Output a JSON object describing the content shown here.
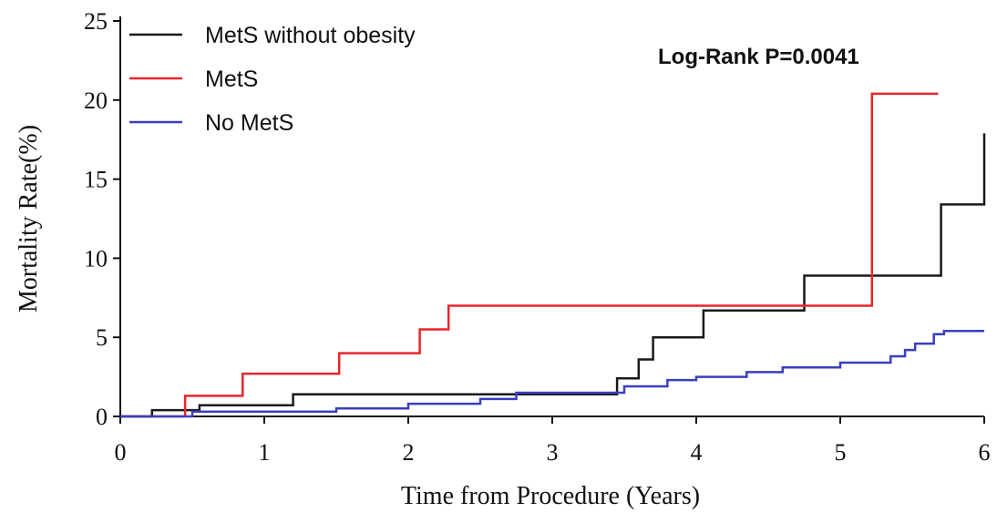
{
  "chart_data": {
    "type": "line",
    "step": true,
    "xlabel": "Time from Procedure (Years)",
    "ylabel": "Mortality Rate(%)",
    "xlim": [
      0,
      6
    ],
    "ylim": [
      0,
      25
    ],
    "x_ticks": [
      "0",
      "1",
      "2",
      "3",
      "4",
      "5",
      "6"
    ],
    "y_ticks": [
      "0",
      "5",
      "10",
      "15",
      "20",
      "25"
    ],
    "grid": false,
    "legend_position": "top-left",
    "annotation": "Log-Rank P=0.0041",
    "series": [
      {
        "name": "MetS without obesity",
        "color": "#1a1a1a",
        "points": [
          [
            0,
            0
          ],
          [
            0.22,
            0
          ],
          [
            0.22,
            0.4
          ],
          [
            0.55,
            0.4
          ],
          [
            0.55,
            0.7
          ],
          [
            1.2,
            0.7
          ],
          [
            1.2,
            1.4
          ],
          [
            3.45,
            1.4
          ],
          [
            3.45,
            2.4
          ],
          [
            3.6,
            2.4
          ],
          [
            3.6,
            3.6
          ],
          [
            3.7,
            3.6
          ],
          [
            3.7,
            5.0
          ],
          [
            4.05,
            5.0
          ],
          [
            4.05,
            6.7
          ],
          [
            4.75,
            6.7
          ],
          [
            4.75,
            8.9
          ],
          [
            5.7,
            8.9
          ],
          [
            5.7,
            13.4
          ],
          [
            6.0,
            13.4
          ],
          [
            6.0,
            17.9
          ]
        ]
      },
      {
        "name": "MetS",
        "color": "#e8262a",
        "points": [
          [
            0,
            0
          ],
          [
            0.45,
            0
          ],
          [
            0.45,
            1.3
          ],
          [
            0.85,
            1.3
          ],
          [
            0.85,
            2.7
          ],
          [
            1.52,
            2.7
          ],
          [
            1.52,
            4.0
          ],
          [
            2.08,
            4.0
          ],
          [
            2.08,
            5.5
          ],
          [
            2.28,
            5.5
          ],
          [
            2.28,
            7.0
          ],
          [
            5.22,
            7.0
          ],
          [
            5.22,
            20.4
          ],
          [
            5.68,
            20.4
          ]
        ]
      },
      {
        "name": "No MetS",
        "color": "#3a3fbf",
        "points": [
          [
            0,
            0
          ],
          [
            0.5,
            0
          ],
          [
            0.5,
            0.3
          ],
          [
            1.5,
            0.3
          ],
          [
            1.5,
            0.5
          ],
          [
            2.0,
            0.5
          ],
          [
            2.0,
            0.8
          ],
          [
            2.5,
            0.8
          ],
          [
            2.5,
            1.1
          ],
          [
            2.75,
            1.1
          ],
          [
            2.75,
            1.5
          ],
          [
            3.5,
            1.5
          ],
          [
            3.5,
            1.9
          ],
          [
            3.8,
            1.9
          ],
          [
            3.8,
            2.3
          ],
          [
            4.0,
            2.3
          ],
          [
            4.0,
            2.5
          ],
          [
            4.35,
            2.5
          ],
          [
            4.35,
            2.8
          ],
          [
            4.6,
            2.8
          ],
          [
            4.6,
            3.1
          ],
          [
            5.0,
            3.1
          ],
          [
            5.0,
            3.4
          ],
          [
            5.35,
            3.4
          ],
          [
            5.35,
            3.8
          ],
          [
            5.45,
            3.8
          ],
          [
            5.45,
            4.2
          ],
          [
            5.52,
            4.2
          ],
          [
            5.52,
            4.6
          ],
          [
            5.65,
            4.6
          ],
          [
            5.65,
            5.2
          ],
          [
            5.72,
            5.2
          ],
          [
            5.72,
            5.4
          ],
          [
            6.0,
            5.4
          ]
        ]
      }
    ]
  }
}
